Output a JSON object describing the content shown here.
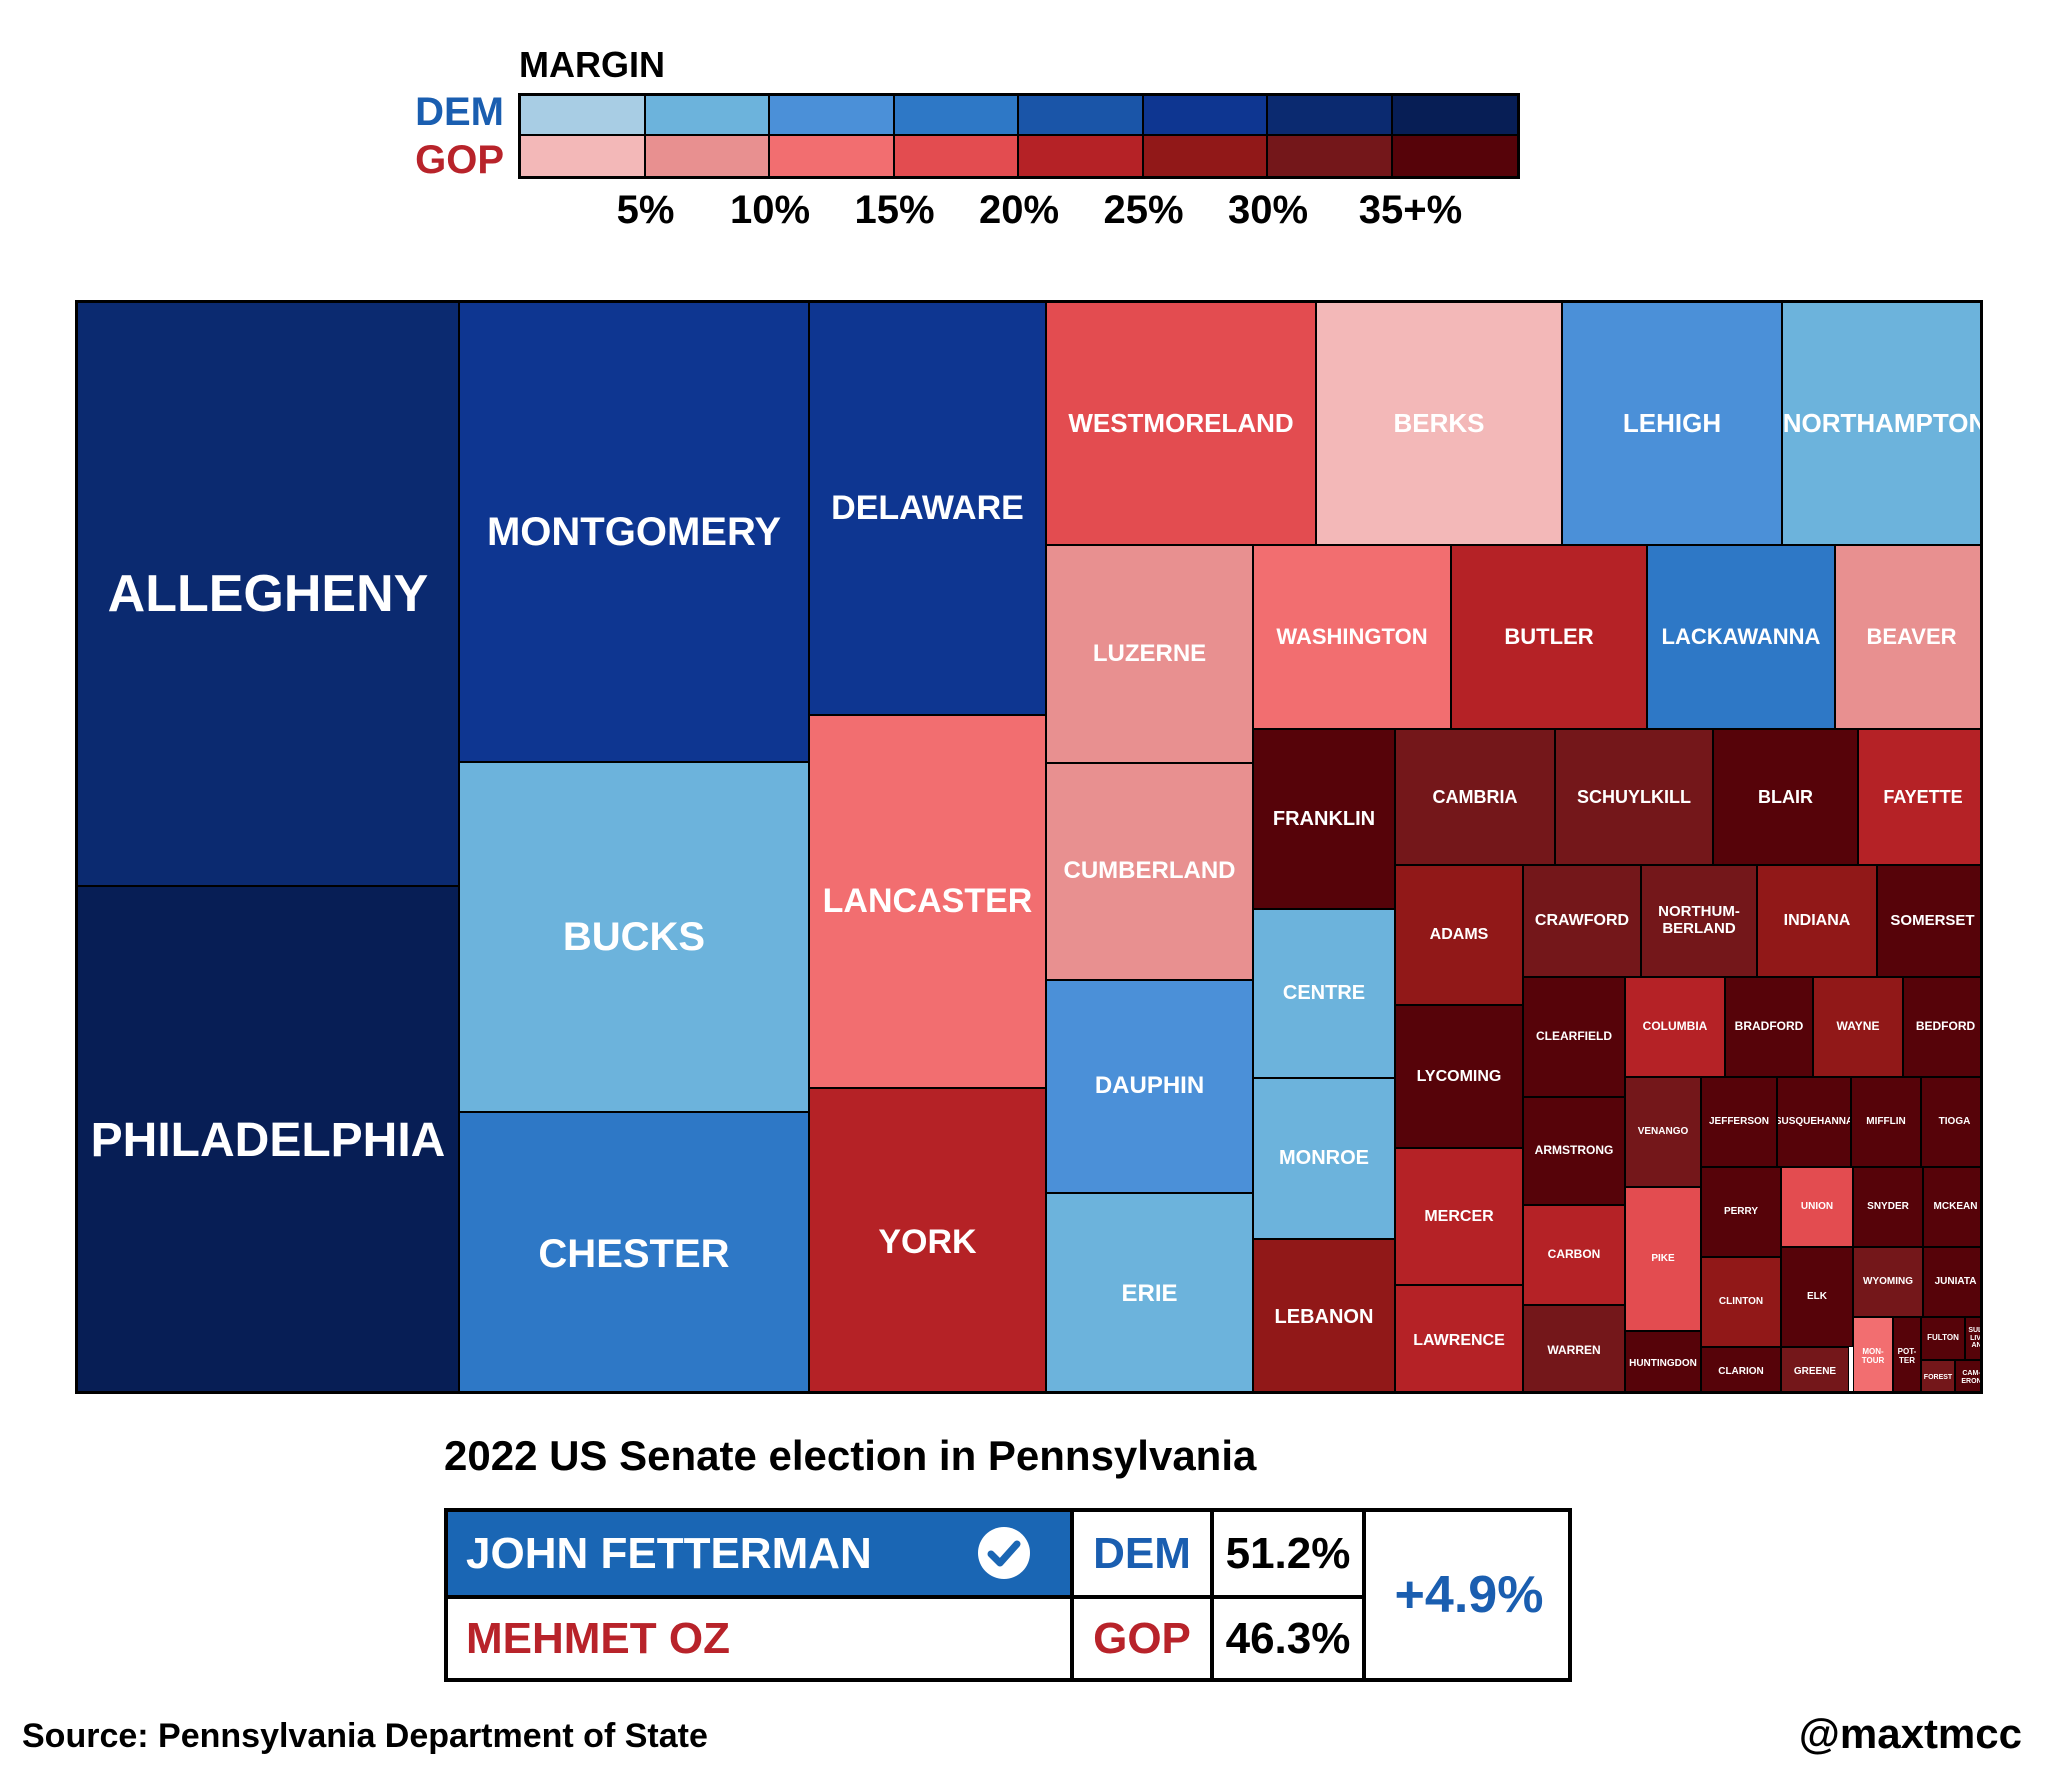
{
  "legend": {
    "title": "MARGIN",
    "dem_label": "DEM",
    "gop_label": "GOP",
    "ticks": [
      "5%",
      "10%",
      "15%",
      "20%",
      "25%",
      "30%",
      "35+%"
    ],
    "dem_colors": [
      "#a8cde4",
      "#6cb3dc",
      "#4b90d8",
      "#2e78c6",
      "#1a55a8",
      "#0e3691",
      "#0b2a70",
      "#071e55"
    ],
    "gop_colors": [
      "#f3b8b8",
      "#e89090",
      "#f26e70",
      "#e34c50",
      "#b52226",
      "#911818",
      "#74171a",
      "#560309"
    ]
  },
  "colors": {
    "dem": "#1a5eb0",
    "gop": "#b8232a",
    "dem_bar": "#1a66b4"
  },
  "chart_data": {
    "type": "treemap",
    "title": "2022 US Senate election in Pennsylvania",
    "counties": [
      {
        "name": "ALLEGHENY",
        "party": "DEM",
        "bin": 6
      },
      {
        "name": "PHILADELPHIA",
        "party": "DEM",
        "bin": 7
      },
      {
        "name": "MONTGOMERY",
        "party": "DEM",
        "bin": 5
      },
      {
        "name": "BUCKS",
        "party": "DEM",
        "bin": 1
      },
      {
        "name": "CHESTER",
        "party": "DEM",
        "bin": 3
      },
      {
        "name": "DELAWARE",
        "party": "DEM",
        "bin": 5
      },
      {
        "name": "LANCASTER",
        "party": "GOP",
        "bin": 2
      },
      {
        "name": "YORK",
        "party": "GOP",
        "bin": 4
      },
      {
        "name": "WESTMORELAND",
        "party": "GOP",
        "bin": 3
      },
      {
        "name": "BERKS",
        "party": "GOP",
        "bin": 0
      },
      {
        "name": "LEHIGH",
        "party": "DEM",
        "bin": 2
      },
      {
        "name": "NORTHAMPTON",
        "party": "DEM",
        "bin": 1
      },
      {
        "name": "LUZERNE",
        "party": "GOP",
        "bin": 1
      },
      {
        "name": "WASHINGTON",
        "party": "GOP",
        "bin": 2
      },
      {
        "name": "BUTLER",
        "party": "GOP",
        "bin": 4
      },
      {
        "name": "LACKAWANNA",
        "party": "DEM",
        "bin": 3
      },
      {
        "name": "BEAVER",
        "party": "GOP",
        "bin": 1
      },
      {
        "name": "CUMBERLAND",
        "party": "GOP",
        "bin": 1
      },
      {
        "name": "DAUPHIN",
        "party": "DEM",
        "bin": 2
      },
      {
        "name": "ERIE",
        "party": "DEM",
        "bin": 1
      },
      {
        "name": "FRANKLIN",
        "party": "GOP",
        "bin": 7
      },
      {
        "name": "CENTRE",
        "party": "DEM",
        "bin": 1
      },
      {
        "name": "MONROE",
        "party": "DEM",
        "bin": 1
      },
      {
        "name": "LEBANON",
        "party": "GOP",
        "bin": 5
      },
      {
        "name": "CAMBRIA",
        "party": "GOP",
        "bin": 6
      },
      {
        "name": "SCHUYLKILL",
        "party": "GOP",
        "bin": 6
      },
      {
        "name": "BLAIR",
        "party": "GOP",
        "bin": 7
      },
      {
        "name": "FAYETTE",
        "party": "GOP",
        "bin": 4
      },
      {
        "name": "ADAMS",
        "party": "GOP",
        "bin": 5
      },
      {
        "name": "CRAWFORD",
        "party": "GOP",
        "bin": 6
      },
      {
        "name": "NORTHUM-\nBERLAND",
        "party": "GOP",
        "bin": 6
      },
      {
        "name": "INDIANA",
        "party": "GOP",
        "bin": 5
      },
      {
        "name": "SOMERSET",
        "party": "GOP",
        "bin": 7
      },
      {
        "name": "LYCOMING",
        "party": "GOP",
        "bin": 7
      },
      {
        "name": "CLEARFIELD",
        "party": "GOP",
        "bin": 7
      },
      {
        "name": "COLUMBIA",
        "party": "GOP",
        "bin": 4
      },
      {
        "name": "BRADFORD",
        "party": "GOP",
        "bin": 7
      },
      {
        "name": "WAYNE",
        "party": "GOP",
        "bin": 5
      },
      {
        "name": "BEDFORD",
        "party": "GOP",
        "bin": 7
      },
      {
        "name": "MERCER",
        "party": "GOP",
        "bin": 4
      },
      {
        "name": "ARMSTRONG",
        "party": "GOP",
        "bin": 7
      },
      {
        "name": "VENANGO",
        "party": "GOP",
        "bin": 6
      },
      {
        "name": "JEFFERSON",
        "party": "GOP",
        "bin": 7
      },
      {
        "name": "SUSQUEHANNA",
        "party": "GOP",
        "bin": 7
      },
      {
        "name": "MIFFLIN",
        "party": "GOP",
        "bin": 7
      },
      {
        "name": "TIOGA",
        "party": "GOP",
        "bin": 7
      },
      {
        "name": "LAWRENCE",
        "party": "GOP",
        "bin": 4
      },
      {
        "name": "CARBON",
        "party": "GOP",
        "bin": 4
      },
      {
        "name": "PIKE",
        "party": "GOP",
        "bin": 3
      },
      {
        "name": "PERRY",
        "party": "GOP",
        "bin": 7
      },
      {
        "name": "UNION",
        "party": "GOP",
        "bin": 3
      },
      {
        "name": "SNYDER",
        "party": "GOP",
        "bin": 7
      },
      {
        "name": "MCKEAN",
        "party": "GOP",
        "bin": 7
      },
      {
        "name": "CLINTON",
        "party": "GOP",
        "bin": 5
      },
      {
        "name": "WARREN",
        "party": "GOP",
        "bin": 6
      },
      {
        "name": "ELK",
        "party": "GOP",
        "bin": 7
      },
      {
        "name": "WYOMING",
        "party": "GOP",
        "bin": 6
      },
      {
        "name": "JUNIATA",
        "party": "GOP",
        "bin": 7
      },
      {
        "name": "HUNTINGDON",
        "party": "GOP",
        "bin": 7
      },
      {
        "name": "CLARION",
        "party": "GOP",
        "bin": 7
      },
      {
        "name": "GREENE",
        "party": "GOP",
        "bin": 6
      },
      {
        "name": "MON-\nTOUR",
        "party": "GOP",
        "bin": 2
      },
      {
        "name": "POT-\nTER",
        "party": "GOP",
        "bin": 7
      },
      {
        "name": "FULTON",
        "party": "GOP",
        "bin": 7
      },
      {
        "name": "SUL-\nLIV-\nAN",
        "party": "GOP",
        "bin": 7
      },
      {
        "name": "FOREST",
        "party": "GOP",
        "bin": 6
      },
      {
        "name": "CAM-\nERON",
        "party": "GOP",
        "bin": 7
      }
    ]
  },
  "results": {
    "title": "2022 US Senate election in Pennsylvania",
    "candidates": [
      {
        "name": "JOHN FETTERMAN",
        "party": "DEM",
        "pct": "51.2%",
        "winner": true
      },
      {
        "name": "MEHMET OZ",
        "party": "GOP",
        "pct": "46.3%",
        "winner": false
      }
    ],
    "margin": "+4.9%",
    "winner_icon": "check-circle-icon"
  },
  "footer": {
    "source": "Source: Pennsylvania Department of State",
    "credit": "@maxtmcc"
  }
}
